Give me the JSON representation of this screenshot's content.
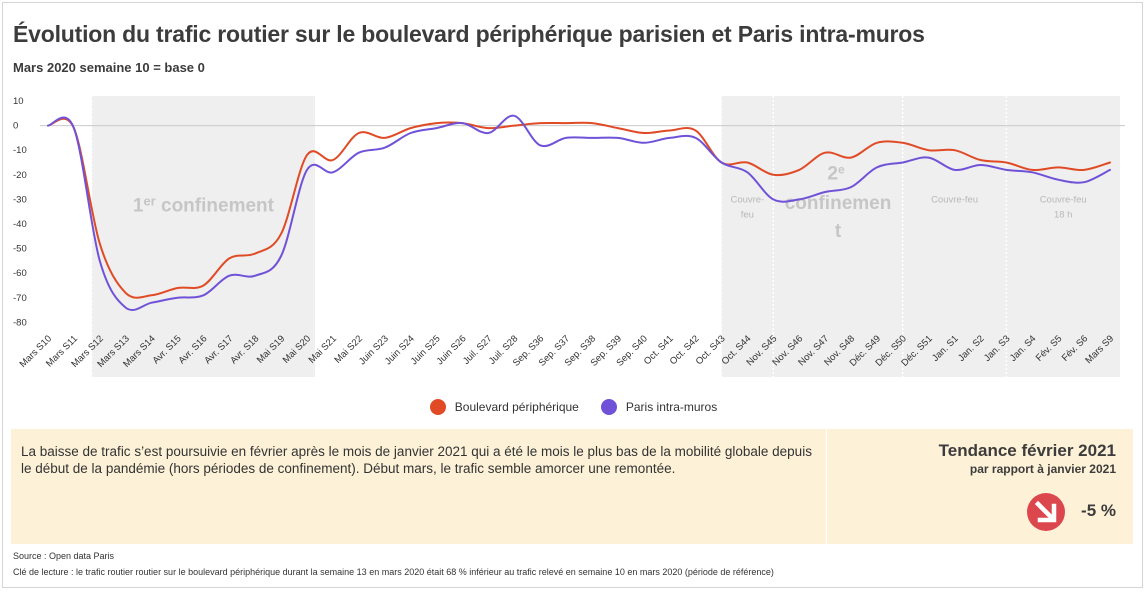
{
  "title": "Évolution du trafic routier sur le boulevard périphérique parisien et Paris intra-muros",
  "subtitle": "Mars 2020 semaine 10 = base 0",
  "chart_data": {
    "type": "line",
    "categories": [
      "Mars S10",
      "Mars S11",
      "Mars S12",
      "Mars S13",
      "Mars S14",
      "Avr. S15",
      "Avr. S16",
      "Avr. S17",
      "Avr. S18",
      "Mai S19",
      "Mai S20",
      "Mai S21",
      "Mai S22",
      "Juin S23",
      "Juin S24",
      "Juin S25",
      "Juin S26",
      "Juil. S27",
      "Juil. S28",
      "Sep. S36",
      "Sep. S37",
      "Sep. S38",
      "Sep. S39",
      "Sep. S40",
      "Oct. S41",
      "Oct. S42",
      "Oct. S43",
      "Oct. S44",
      "Nov. S45",
      "Nov. S46",
      "Nov. S47",
      "Nov. S48",
      "Déc. S49",
      "Déc. S50",
      "Déc. S51",
      "Jan. S1",
      "Jan. S2",
      "Jan. S3",
      "Jan. S4",
      "Fév. S5",
      "Fév. S6",
      "Mars S9"
    ],
    "series": [
      {
        "name": "Boulevard périphérique",
        "color": "#e04b26",
        "values": [
          0,
          -1,
          -48,
          -68,
          -69,
          -66,
          -65,
          -54,
          -52,
          -44,
          -12,
          -14,
          -3,
          -5,
          -1,
          1,
          1,
          -1,
          0,
          1,
          1,
          1,
          -1,
          -3,
          -2,
          -2,
          -15,
          -15,
          -20,
          -18,
          -11,
          -13,
          -7,
          -7,
          -10,
          -10,
          -14,
          -15,
          -18,
          -17,
          -18,
          -15
        ]
      },
      {
        "name": "Paris intra-muros",
        "color": "#7052d8",
        "values": [
          0,
          -1,
          -55,
          -74,
          -72,
          -70,
          -69,
          -61,
          -61,
          -53,
          -18,
          -19,
          -11,
          -9,
          -3,
          -1,
          1,
          -3,
          4,
          -8,
          -5,
          -5,
          -5,
          -7,
          -5,
          -5,
          -15,
          -19,
          -30,
          -30,
          -27,
          -25,
          -17,
          -15,
          -13,
          -18,
          -16,
          -18,
          -19,
          -22,
          -23,
          -18
        ]
      }
    ],
    "yticks": [
      10,
      0,
      -10,
      -20,
      -30,
      -40,
      -50,
      -60,
      -70,
      -80
    ],
    "ylim": [
      -85,
      12
    ],
    "bands": [
      {
        "from": "Mars S12",
        "to": "Mai S20",
        "label_main": "1",
        "label_sup": "er",
        "label_rest": " confinement"
      },
      {
        "from": "Oct. S43",
        "to": "Nov. S45",
        "lines": [
          "Couvre-",
          "feu"
        ]
      },
      {
        "from": "Nov. S45",
        "to": "Déc. S50",
        "label_main": "2",
        "label_sup": "e",
        "lines": [
          "confinemen",
          "t"
        ]
      },
      {
        "from": "Déc. S50",
        "to": "Jan. S3",
        "lines": [
          "Couvre-feu"
        ]
      },
      {
        "from": "Jan. S3",
        "to": "Mars S9",
        "lines": [
          "Couvre-feu",
          "18 h"
        ]
      }
    ]
  },
  "summary": "La baisse de trafic s’est poursuivie en février après le mois de janvier 2021 qui a été le mois le plus bas de la mobilité globale depuis le début de la pandémie (hors périodes de confinement). Début mars, le trafic semble amorcer une remontée.",
  "trend": {
    "title": "Tendance février 2021",
    "subtitle": "par rapport à janvier 2021",
    "value": "-5 %",
    "icon": "arrow-down-right-icon",
    "icon_color": "#dc474e"
  },
  "footer": {
    "source": "Source : Open data Paris",
    "reading_key": "Clé de lecture : le trafic routier routier sur le boulevard périphérique durant la semaine 13 en mars 2020 était 68 % inférieur au trafic relevé en semaine 10 en mars 2020 (période de référence)"
  }
}
